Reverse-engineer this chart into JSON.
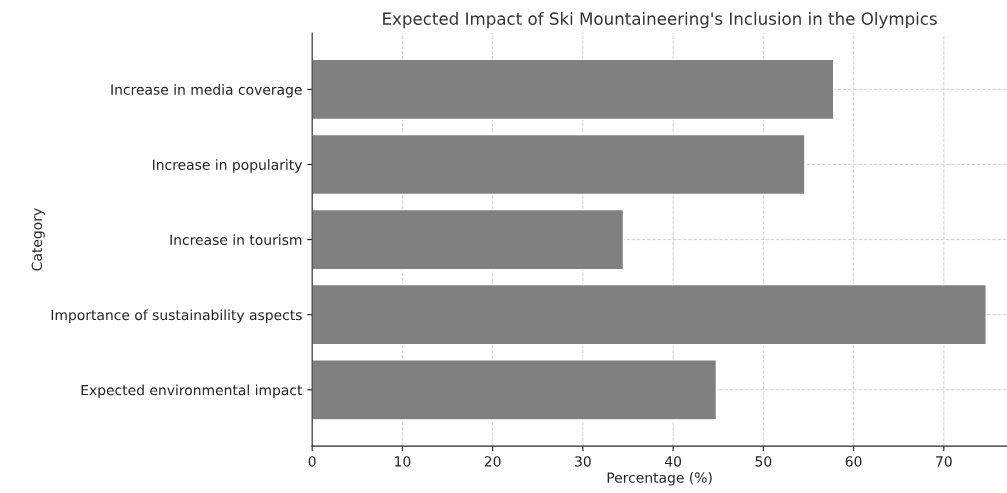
{
  "chart_data": {
    "type": "bar",
    "orientation": "horizontal",
    "title": "Expected Impact of Ski Mountaineering's Inclusion in the Olympics",
    "xlabel": "Percentage (%)",
    "ylabel": "Category",
    "categories": [
      "Increase in media coverage",
      "Increase in popularity",
      "Increase in tourism",
      "Importance of sustainability aspects",
      "Expected environmental impact"
    ],
    "values": [
      57.8,
      54.6,
      34.5,
      74.7,
      44.8
    ],
    "color": "#808080",
    "xlim": [
      0,
      77
    ],
    "xticks": [
      0,
      10,
      20,
      30,
      40,
      50,
      60,
      70
    ],
    "grid": true
  }
}
